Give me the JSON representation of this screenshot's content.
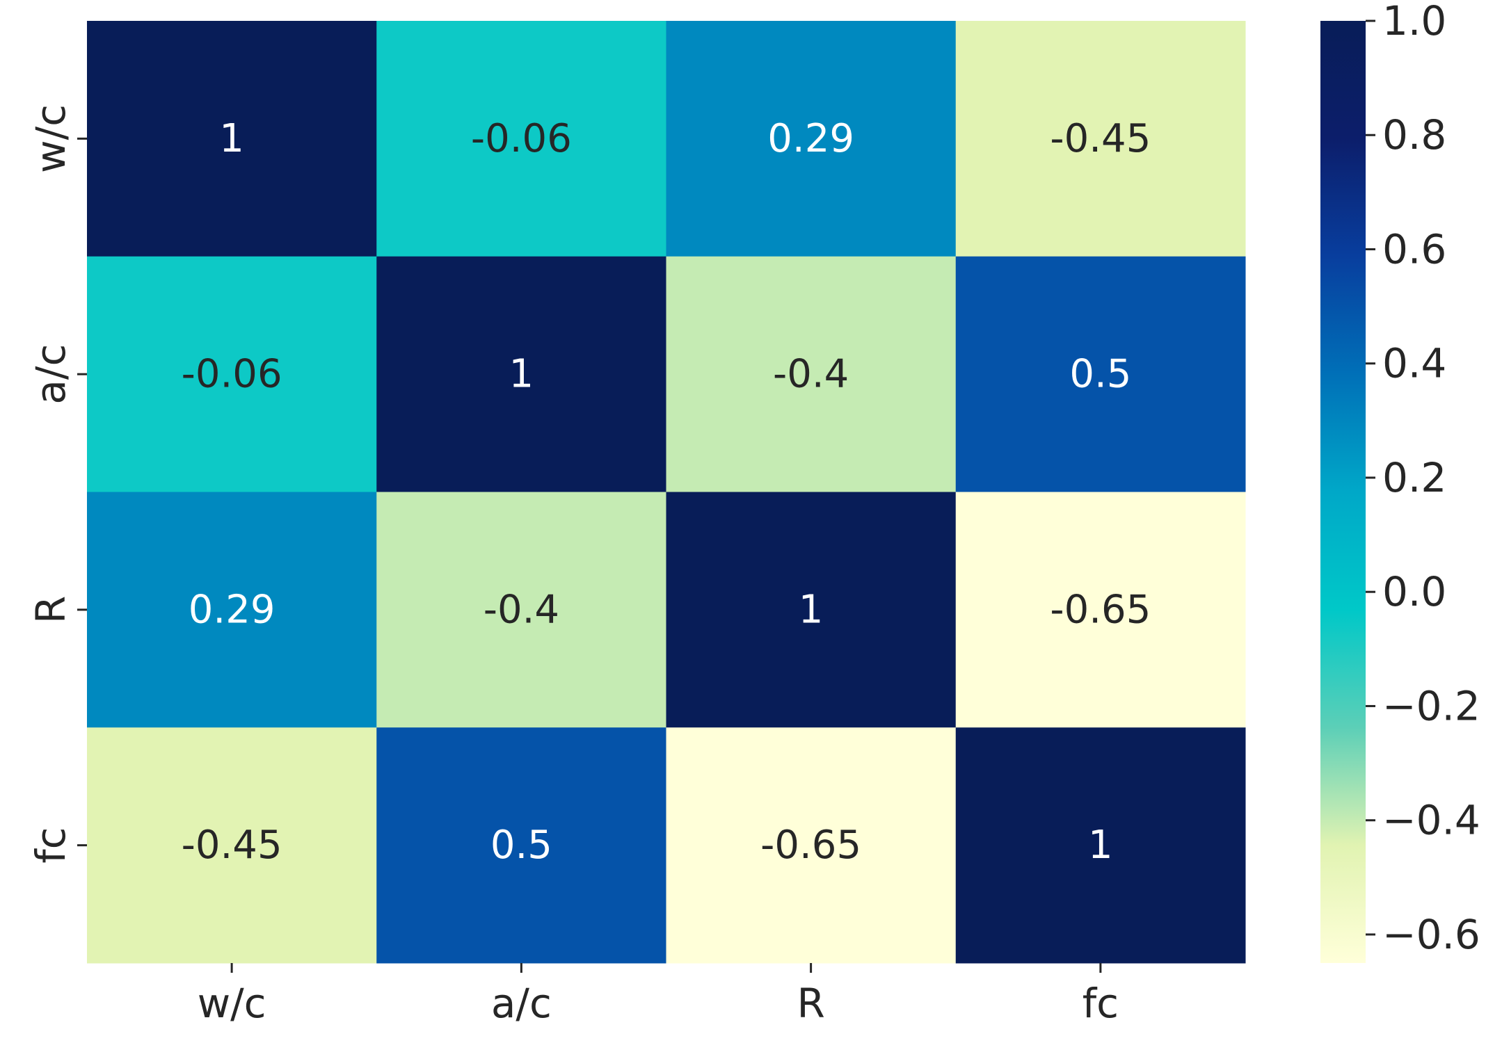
{
  "chart_data": {
    "type": "heatmap",
    "title": "",
    "xlabel": "",
    "ylabel": "",
    "x_categories": [
      "w/c",
      "a/c",
      "R",
      "fc"
    ],
    "y_categories": [
      "w/c",
      "a/c",
      "R",
      "fc"
    ],
    "values": [
      [
        1,
        -0.06,
        0.29,
        -0.45
      ],
      [
        -0.06,
        1,
        -0.4,
        0.5
      ],
      [
        0.29,
        -0.4,
        1,
        -0.65
      ],
      [
        -0.45,
        0.5,
        -0.65,
        1
      ]
    ],
    "cell_labels": [
      [
        "1",
        "-0.06",
        "0.29",
        "-0.45"
      ],
      [
        "-0.06",
        "1",
        "-0.4",
        "0.5"
      ],
      [
        "0.29",
        "-0.4",
        "1",
        "-0.65"
      ],
      [
        "-0.45",
        "0.5",
        "-0.65",
        "1"
      ]
    ],
    "colormap": "YlGnBu",
    "color_range": [
      -0.65,
      1.0
    ],
    "colorbar_ticks": [
      1.0,
      0.8,
      0.6,
      0.4,
      0.2,
      0.0,
      -0.2,
      -0.4,
      -0.6
    ],
    "colorbar_tick_labels": [
      "1.0",
      "0.8",
      "0.6",
      "0.4",
      "0.2",
      "0.0",
      "−0.2",
      "−0.4",
      "−0.6"
    ],
    "colorbar_position": "right",
    "grid": false,
    "colormap_stops": [
      {
        "color": "#ffffd9"
      },
      {
        "color": "#e1f3b2"
      },
      {
        "color": "#5ccfb7"
      },
      {
        "color": "#00c8c8"
      },
      {
        "color": "#00a8c8"
      },
      {
        "color": "#0070b8"
      },
      {
        "color": "#083e9e"
      },
      {
        "color": "#0c1e6b"
      },
      {
        "color": "#081d58"
      }
    ]
  }
}
